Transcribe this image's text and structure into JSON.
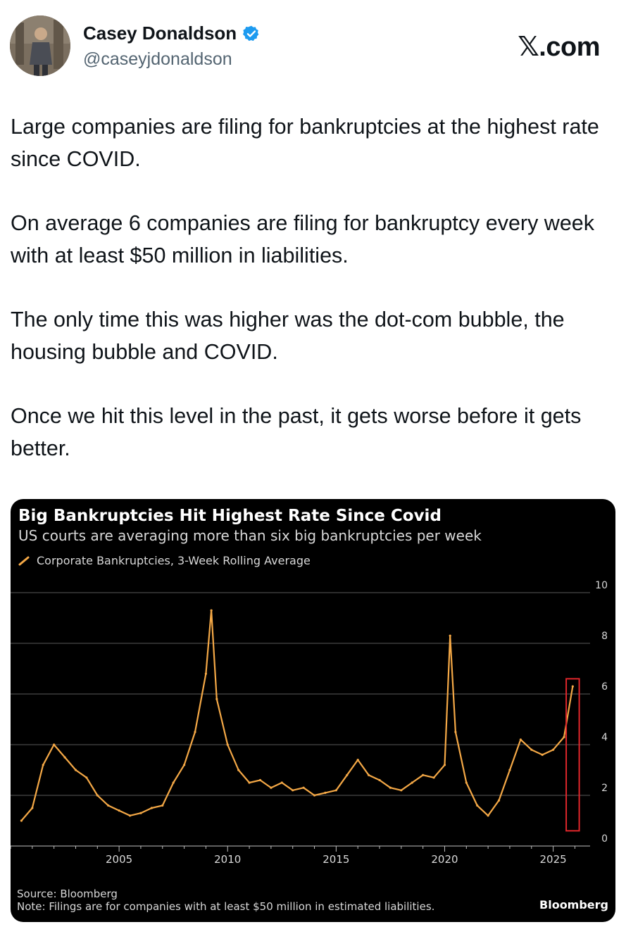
{
  "author": {
    "name": "Casey Donaldson",
    "handle": "@caseyjdonaldson",
    "verified": true,
    "verified_color": "#1d9bf0"
  },
  "brand": "𝕏.com",
  "tweet": {
    "paragraphs": [
      "Large companies are filing for bankruptcies at the highest rate since COVID.",
      "On average 6 companies are filing for bankruptcy every week with at least $50 million in liabilities.",
      "The only time this was higher was the dot-com bubble, the housing bubble and COVID.",
      "Once we hit this level in the past, it gets worse before it gets better."
    ]
  },
  "chart": {
    "title": "Big Bankruptcies Hit Highest Rate Since Covid",
    "subtitle": "US courts are averaging more than six big bankruptcies per week",
    "source": "Source: Bloomberg",
    "note": "Note: Filings are for companies with at least $50 million in estimated liabilities.",
    "logo": "Bloomberg"
  },
  "chart_data": {
    "type": "line",
    "title": "Big Bankruptcies Hit Highest Rate Since Covid",
    "subtitle": "US courts are averaging more than six big bankruptcies per week",
    "series": [
      {
        "name": "Corporate Bankruptcies, 3-Week Rolling Average",
        "color": "#f4a846",
        "x": [
          2000.5,
          2001.0,
          2001.5,
          2002.0,
          2002.5,
          2003.0,
          2003.5,
          2004.0,
          2004.5,
          2005.0,
          2005.5,
          2006.0,
          2006.5,
          2007.0,
          2007.5,
          2008.0,
          2008.5,
          2009.0,
          2009.25,
          2009.5,
          2010.0,
          2010.5,
          2011.0,
          2011.5,
          2012.0,
          2012.5,
          2013.0,
          2013.5,
          2014.0,
          2014.5,
          2015.0,
          2015.5,
          2016.0,
          2016.5,
          2017.0,
          2017.5,
          2018.0,
          2018.5,
          2019.0,
          2019.5,
          2020.0,
          2020.25,
          2020.5,
          2021.0,
          2021.5,
          2022.0,
          2022.5,
          2023.0,
          2023.5,
          2024.0,
          2024.5,
          2025.0,
          2025.5,
          2025.9
        ],
        "values": [
          1.0,
          1.5,
          3.2,
          4.0,
          3.5,
          3.0,
          2.7,
          2.0,
          1.6,
          1.4,
          1.2,
          1.3,
          1.5,
          1.6,
          2.5,
          3.2,
          4.5,
          6.8,
          9.3,
          5.8,
          4.0,
          3.0,
          2.5,
          2.6,
          2.3,
          2.5,
          2.2,
          2.3,
          2.0,
          2.1,
          2.2,
          2.8,
          3.4,
          2.8,
          2.6,
          2.3,
          2.2,
          2.5,
          2.8,
          2.7,
          3.2,
          8.3,
          4.5,
          2.5,
          1.6,
          1.2,
          1.8,
          3.0,
          4.2,
          3.8,
          3.6,
          3.8,
          4.3,
          6.3
        ]
      }
    ],
    "x_ticks": [
      2005,
      2010,
      2015,
      2020,
      2025
    ],
    "y_ticks": [
      0,
      2,
      4,
      6,
      8,
      10
    ],
    "xlim": [
      2000.0,
      2026.7
    ],
    "ylim": [
      0,
      10
    ],
    "grid": "horizontal",
    "legend": "top-left",
    "highlight": {
      "x_range": [
        2025.6,
        2026.2
      ],
      "y_range": [
        0.6,
        6.6
      ],
      "color": "#e0262b"
    }
  }
}
